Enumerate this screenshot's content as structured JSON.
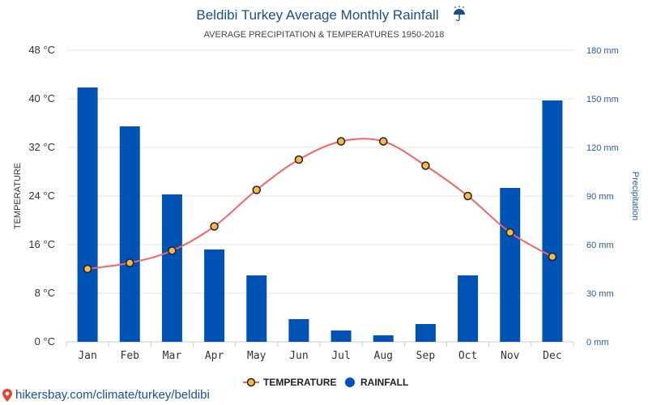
{
  "chart_data": {
    "type": "bar+line",
    "title": "Beldibi Turkey Average Monthly Rainfall",
    "title_icon": "umbrella-rain-icon",
    "subtitle": "AVERAGE PRECIPITATION & TEMPERATURES 1950-2018",
    "categories": [
      "Jan",
      "Feb",
      "Mar",
      "Apr",
      "May",
      "Jun",
      "Jul",
      "Aug",
      "Sep",
      "Oct",
      "Nov",
      "Dec"
    ],
    "series": [
      {
        "name": "TEMPERATURE",
        "type": "line",
        "axis": "left",
        "values": [
          12,
          13,
          15,
          19,
          25,
          30,
          33,
          33,
          29,
          24,
          18,
          14
        ]
      },
      {
        "name": "RAINFALL",
        "type": "bar",
        "axis": "right",
        "values": [
          157,
          133,
          91,
          57,
          41,
          14,
          7,
          4,
          11,
          41,
          95,
          149
        ]
      }
    ],
    "left_axis": {
      "label": "TEMPERATURE",
      "min": 0,
      "max": 48,
      "ticks": [
        "0 °C",
        "8 °C",
        "16 °C",
        "24 °C",
        "32 °C",
        "40 °C",
        "48 °C"
      ]
    },
    "right_axis": {
      "label": "Precipitation",
      "min": 0,
      "max": 180,
      "ticks": [
        "0 mm",
        "30 mm",
        "60 mm",
        "90 mm",
        "120 mm",
        "150 mm",
        "180 mm"
      ]
    },
    "grid": true,
    "legend_position": "bottom-center",
    "colors": {
      "bar": "#0052b4",
      "line": "#ee6666",
      "marker_fill": "#f7b84b",
      "marker_stroke": "#222222",
      "grid": "#e6e6e6",
      "title": "#1a4f8b",
      "right_axis": "#2a5aa8"
    }
  },
  "footer": {
    "source": "hikersbay.com/climate/turkey/beldibi",
    "source_icon": "map-pin-icon"
  }
}
